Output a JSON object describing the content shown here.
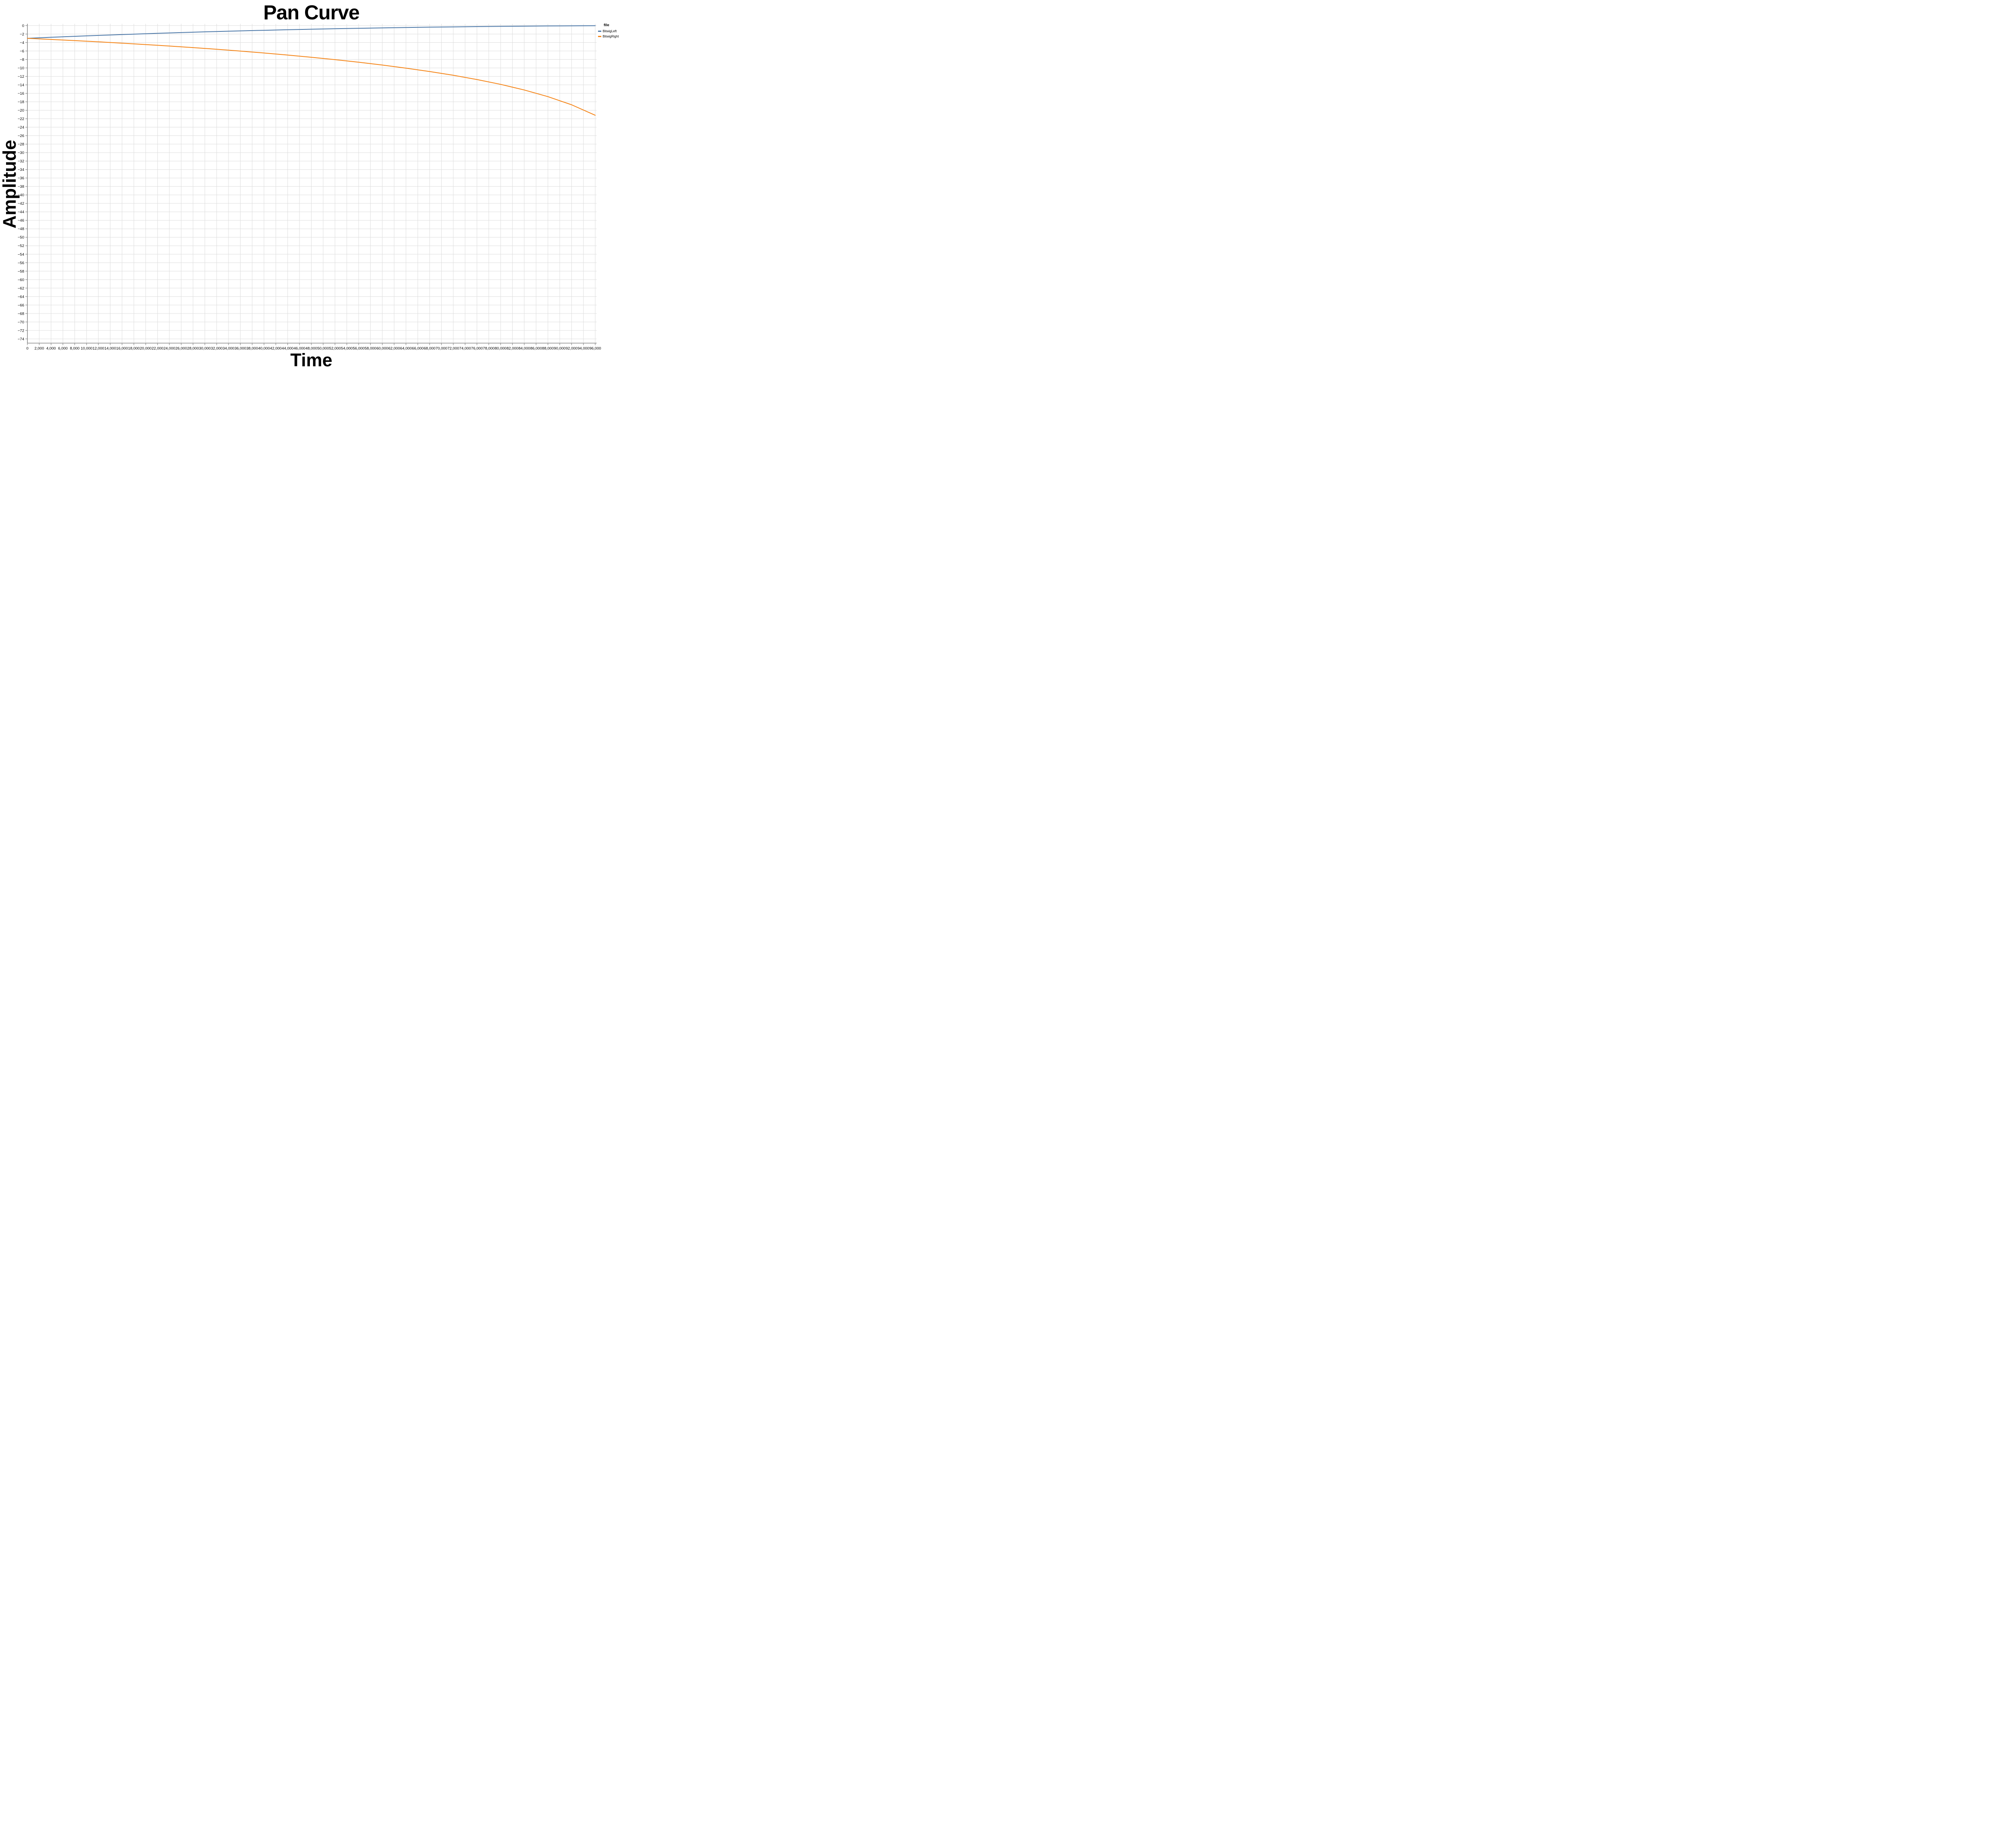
{
  "chart_data": {
    "type": "line",
    "title": "Pan Curve",
    "xlabel": "Time",
    "ylabel": "Amplitude",
    "legend_title": "file",
    "legend_position": "top-right",
    "grid": true,
    "xlim": [
      0,
      96000
    ],
    "ylim": [
      -75,
      0.4
    ],
    "x_ticks": [
      0,
      2000,
      4000,
      6000,
      8000,
      10000,
      12000,
      14000,
      16000,
      18000,
      20000,
      22000,
      24000,
      26000,
      28000,
      30000,
      32000,
      34000,
      36000,
      38000,
      40000,
      42000,
      44000,
      46000,
      48000,
      50000,
      52000,
      54000,
      56000,
      58000,
      60000,
      62000,
      64000,
      66000,
      68000,
      70000,
      72000,
      74000,
      76000,
      78000,
      80000,
      82000,
      84000,
      86000,
      88000,
      90000,
      92000,
      94000,
      96000
    ],
    "y_ticks": [
      0,
      -2,
      -4,
      -6,
      -8,
      -10,
      -12,
      -14,
      -16,
      -18,
      -20,
      -22,
      -24,
      -26,
      -28,
      -30,
      -32,
      -34,
      -36,
      -38,
      -40,
      -42,
      -44,
      -46,
      -48,
      -50,
      -52,
      -54,
      -56,
      -58,
      -60,
      -62,
      -64,
      -66,
      -68,
      -70,
      -72,
      -74
    ],
    "x": [
      0,
      4000,
      8000,
      12000,
      16000,
      20000,
      24000,
      28000,
      32000,
      36000,
      40000,
      44000,
      48000,
      52000,
      56000,
      60000,
      64000,
      68000,
      72000,
      76000,
      80000,
      84000,
      88000,
      92000,
      96000
    ],
    "series": [
      {
        "name": "BitwigLeft",
        "color": "#4c78a8",
        "values": [
          -3.01,
          -2.76,
          -2.53,
          -2.32,
          -2.11,
          -1.92,
          -1.73,
          -1.56,
          -1.4,
          -1.25,
          -1.11,
          -0.98,
          -0.86,
          -0.74,
          -0.64,
          -0.54,
          -0.45,
          -0.37,
          -0.3,
          -0.24,
          -0.18,
          -0.13,
          -0.09,
          -0.06,
          -0.03
        ]
      },
      {
        "name": "BitwigRight",
        "color": "#f58518",
        "values": [
          -3.01,
          -3.27,
          -3.55,
          -3.84,
          -4.15,
          -4.48,
          -4.83,
          -5.2,
          -5.6,
          -6.02,
          -6.47,
          -6.96,
          -7.48,
          -8.04,
          -8.65,
          -9.32,
          -10.05,
          -10.85,
          -11.74,
          -12.74,
          -13.88,
          -15.21,
          -16.78,
          -18.7,
          -21.19
        ]
      }
    ],
    "axis_style": {
      "grid_color": "#dddddd",
      "domain_color": "#888888",
      "label_color": "#000000"
    }
  }
}
